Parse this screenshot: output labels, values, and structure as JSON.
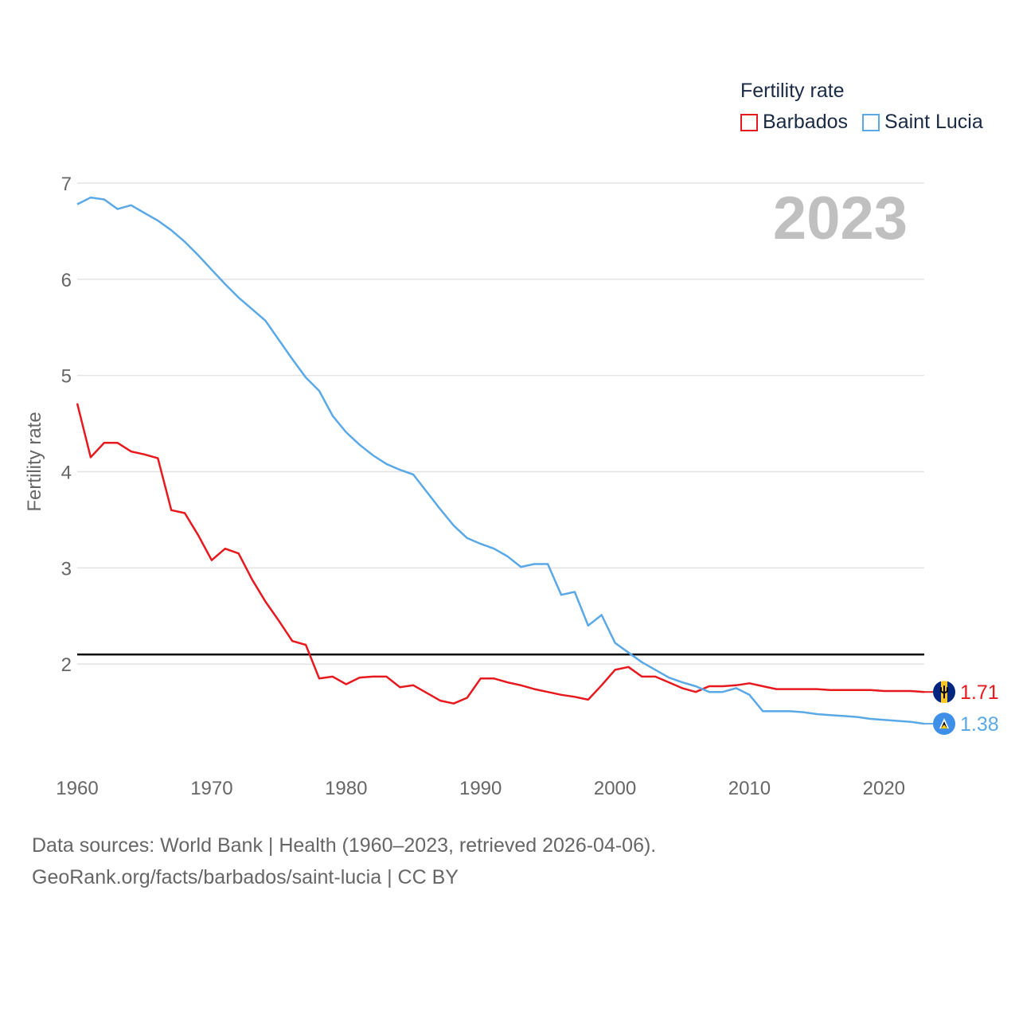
{
  "legend": {
    "title": "Fertility rate",
    "items": [
      {
        "label": "Barbados",
        "color": "#e8191e"
      },
      {
        "label": "Saint Lucia",
        "color": "#5aa9e6"
      }
    ]
  },
  "footer": {
    "line1": "Data sources: World Bank | Health (1960–2023, retrieved 2026-04-06).",
    "line2": "GeoRank.org/facts/barbados/saint-lucia | CC BY"
  },
  "chart_data": {
    "type": "line",
    "title": "Fertility rate",
    "year_label": "2023",
    "xlabel": "",
    "ylabel": "Fertility rate",
    "xlim": [
      1960,
      2023
    ],
    "ylim": [
      1,
      7
    ],
    "x_ticks": [
      1960,
      1970,
      1980,
      1990,
      2000,
      2010,
      2020
    ],
    "y_ticks": [
      2,
      3,
      4,
      5,
      6,
      7
    ],
    "grid": true,
    "reference_line": 2.1,
    "x": [
      1960,
      1961,
      1962,
      1963,
      1964,
      1965,
      1966,
      1967,
      1968,
      1969,
      1970,
      1971,
      1972,
      1973,
      1974,
      1975,
      1976,
      1977,
      1978,
      1979,
      1980,
      1981,
      1982,
      1983,
      1984,
      1985,
      1986,
      1987,
      1988,
      1989,
      1990,
      1991,
      1992,
      1993,
      1994,
      1995,
      1996,
      1997,
      1998,
      1999,
      2000,
      2001,
      2002,
      2003,
      2004,
      2005,
      2006,
      2007,
      2008,
      2009,
      2010,
      2011,
      2012,
      2013,
      2014,
      2015,
      2016,
      2017,
      2018,
      2019,
      2020,
      2021,
      2022,
      2023
    ],
    "series": [
      {
        "name": "Barbados",
        "color": "#e8191e",
        "end_label": "1.71",
        "values": [
          4.71,
          4.15,
          4.3,
          4.3,
          4.21,
          4.18,
          4.14,
          3.6,
          3.57,
          3.34,
          3.08,
          3.2,
          3.15,
          2.88,
          2.65,
          2.45,
          2.24,
          2.2,
          1.85,
          1.87,
          1.79,
          1.86,
          1.87,
          1.87,
          1.76,
          1.78,
          1.7,
          1.62,
          1.59,
          1.65,
          1.85,
          1.85,
          1.81,
          1.78,
          1.74,
          1.71,
          1.68,
          1.66,
          1.63,
          1.78,
          1.94,
          1.97,
          1.87,
          1.87,
          1.81,
          1.75,
          1.71,
          1.77,
          1.77,
          1.78,
          1.8,
          1.77,
          1.74,
          1.74,
          1.74,
          1.74,
          1.73,
          1.73,
          1.73,
          1.73,
          1.72,
          1.72,
          1.72,
          1.71
        ]
      },
      {
        "name": "Saint Lucia",
        "color": "#5aa9e6",
        "end_label": "1.38",
        "values": [
          6.78,
          6.85,
          6.83,
          6.73,
          6.77,
          6.69,
          6.61,
          6.51,
          6.39,
          6.25,
          6.1,
          5.95,
          5.81,
          5.69,
          5.57,
          5.37,
          5.17,
          4.98,
          4.84,
          4.58,
          4.41,
          4.28,
          4.17,
          4.08,
          4.02,
          3.97,
          3.79,
          3.61,
          3.44,
          3.31,
          3.25,
          3.2,
          3.12,
          3.01,
          3.04,
          3.04,
          2.72,
          2.75,
          2.4,
          2.51,
          2.22,
          2.12,
          2.02,
          1.94,
          1.86,
          1.81,
          1.77,
          1.71,
          1.71,
          1.75,
          1.68,
          1.51,
          1.51,
          1.51,
          1.5,
          1.48,
          1.47,
          1.46,
          1.45,
          1.43,
          1.42,
          1.41,
          1.4,
          1.38
        ]
      }
    ]
  }
}
